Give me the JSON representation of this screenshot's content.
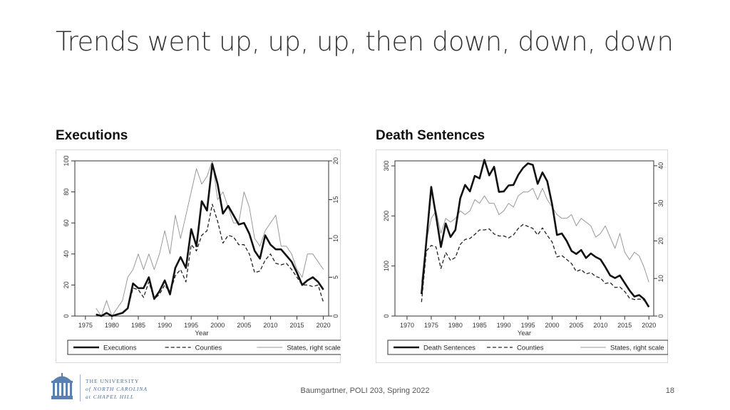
{
  "slide": {
    "title": "Trends went up, up, up, then down, down, down",
    "footer": "Baumgartner, POLI 203, Spring 2022",
    "page_number": "18"
  },
  "logo": {
    "line1": "THE UNIVERSITY",
    "line2": "of NORTH CAROLINA",
    "line3": "at CHAPEL HILL",
    "color": "#4b6d9a"
  },
  "chart_data": [
    {
      "type": "line",
      "panel_label": "Executions",
      "xlabel": "Year",
      "x_ticks": [
        1975,
        1980,
        1985,
        1990,
        1995,
        2000,
        2005,
        2010,
        2015,
        2020
      ],
      "xlim": [
        1973,
        2021
      ],
      "y_left_ticks": [
        0,
        20,
        40,
        60,
        80,
        100
      ],
      "ylim_left": [
        0,
        100
      ],
      "y_right_ticks": [
        0,
        5,
        10,
        15,
        20
      ],
      "ylim_right": [
        0,
        20
      ],
      "legend_position": "bottom",
      "series": [
        {
          "name": "Executions",
          "style": "thick-solid",
          "axis": "left",
          "x": [
            1977,
            1978,
            1979,
            1980,
            1981,
            1982,
            1983,
            1984,
            1985,
            1986,
            1987,
            1988,
            1989,
            1990,
            1991,
            1992,
            1993,
            1994,
            1995,
            1996,
            1997,
            1998,
            1999,
            2000,
            2001,
            2002,
            2003,
            2004,
            2005,
            2006,
            2007,
            2008,
            2009,
            2010,
            2011,
            2012,
            2013,
            2014,
            2015,
            2016,
            2017,
            2018,
            2019,
            2020
          ],
          "values": [
            1,
            0,
            2,
            0,
            1,
            2,
            5,
            21,
            18,
            18,
            25,
            11,
            16,
            23,
            14,
            31,
            38,
            31,
            56,
            45,
            74,
            68,
            98,
            85,
            66,
            71,
            65,
            59,
            60,
            53,
            42,
            37,
            52,
            46,
            43,
            43,
            39,
            35,
            28,
            20,
            23,
            25,
            22,
            17
          ]
        },
        {
          "name": "Counties",
          "style": "dashed",
          "axis": "left",
          "x": [
            1977,
            1978,
            1979,
            1980,
            1981,
            1982,
            1983,
            1984,
            1985,
            1986,
            1987,
            1988,
            1989,
            1990,
            1991,
            1992,
            1993,
            1994,
            1995,
            1996,
            1997,
            1998,
            1999,
            2000,
            2001,
            2002,
            2003,
            2004,
            2005,
            2006,
            2007,
            2008,
            2009,
            2010,
            2011,
            2012,
            2013,
            2014,
            2015,
            2016,
            2017,
            2018,
            2019,
            2020
          ],
          "values": [
            1,
            0,
            2,
            0,
            1,
            2,
            5,
            18,
            17,
            12,
            22,
            11,
            14,
            20,
            15,
            26,
            30,
            22,
            46,
            42,
            52,
            55,
            72,
            61,
            47,
            52,
            51,
            46,
            46,
            40,
            28,
            29,
            36,
            40,
            34,
            33,
            34,
            30,
            25,
            20,
            20,
            19,
            20,
            9
          ]
        },
        {
          "name": "States, right scale",
          "style": "thin-solid",
          "axis": "right",
          "x": [
            1977,
            1978,
            1979,
            1980,
            1981,
            1982,
            1983,
            1984,
            1985,
            1986,
            1987,
            1988,
            1989,
            1990,
            1991,
            1992,
            1993,
            1994,
            1995,
            1996,
            1997,
            1998,
            1999,
            2000,
            2001,
            2002,
            2003,
            2004,
            2005,
            2006,
            2007,
            2008,
            2009,
            2010,
            2011,
            2012,
            2013,
            2014,
            2015,
            2016,
            2017,
            2018,
            2019,
            2020
          ],
          "values": [
            1,
            0,
            2,
            0,
            1,
            2,
            5,
            6,
            8,
            6,
            8,
            6,
            8,
            11,
            8,
            13,
            10,
            13,
            16,
            19,
            17,
            18,
            20,
            15,
            16,
            14,
            12,
            12,
            16,
            14,
            10,
            9,
            11,
            12,
            13,
            9,
            9,
            8,
            6,
            5,
            8,
            8,
            7,
            6
          ]
        }
      ]
    },
    {
      "type": "line",
      "panel_label": "Death Sentences",
      "xlabel": "Year",
      "x_ticks": [
        1970,
        1975,
        1980,
        1985,
        1990,
        1995,
        2000,
        2005,
        2010,
        2015,
        2020
      ],
      "xlim": [
        1967.5,
        2021
      ],
      "y_left_ticks": [
        0,
        100,
        200,
        300
      ],
      "ylim_left": [
        0,
        310
      ],
      "y_right_ticks": [
        0,
        10,
        20,
        30,
        40
      ],
      "ylim_right": [
        0,
        41.3
      ],
      "legend_position": "bottom",
      "series": [
        {
          "name": "Death Sentences",
          "style": "thick-solid",
          "axis": "left",
          "x": [
            1973,
            1974,
            1975,
            1976,
            1977,
            1978,
            1979,
            1980,
            1981,
            1982,
            1983,
            1984,
            1985,
            1986,
            1987,
            1988,
            1989,
            1990,
            1991,
            1992,
            1993,
            1994,
            1995,
            1996,
            1997,
            1998,
            1999,
            2000,
            2001,
            2002,
            2003,
            2004,
            2005,
            2006,
            2007,
            2008,
            2009,
            2010,
            2011,
            2012,
            2013,
            2014,
            2015,
            2016,
            2017,
            2018,
            2019,
            2020
          ],
          "values": [
            44,
            150,
            258,
            200,
            138,
            185,
            158,
            172,
            235,
            262,
            249,
            280,
            275,
            312,
            281,
            298,
            248,
            249,
            261,
            262,
            282,
            296,
            305,
            302,
            264,
            287,
            269,
            223,
            162,
            165,
            150,
            130,
            124,
            132,
            116,
            125,
            118,
            113,
            98,
            81,
            76,
            81,
            66,
            51,
            39,
            42,
            34,
            18
          ]
        },
        {
          "name": "Counties",
          "style": "dashed",
          "axis": "left",
          "x": [
            1973,
            1974,
            1975,
            1976,
            1977,
            1978,
            1979,
            1980,
            1981,
            1982,
            1983,
            1984,
            1985,
            1986,
            1987,
            1988,
            1989,
            1990,
            1991,
            1992,
            1993,
            1994,
            1995,
            1996,
            1997,
            1998,
            1999,
            2000,
            2001,
            2002,
            2003,
            2004,
            2005,
            2006,
            2007,
            2008,
            2009,
            2010,
            2011,
            2012,
            2013,
            2014,
            2015,
            2016,
            2017,
            2018,
            2019,
            2020
          ],
          "values": [
            28,
            130,
            141,
            138,
            95,
            127,
            111,
            117,
            143,
            153,
            155,
            163,
            172,
            172,
            174,
            164,
            160,
            160,
            156,
            162,
            175,
            183,
            179,
            175,
            162,
            176,
            161,
            148,
            118,
            121,
            113,
            105,
            89,
            93,
            84,
            87,
            79,
            76,
            65,
            67,
            57,
            58,
            49,
            36,
            33,
            34,
            32,
            18
          ]
        },
        {
          "name": "States, right scale",
          "style": "thin-solid",
          "axis": "right",
          "x": [
            1973,
            1974,
            1975,
            1976,
            1977,
            1978,
            1979,
            1980,
            1981,
            1982,
            1983,
            1984,
            1985,
            1986,
            1987,
            1988,
            1989,
            1990,
            1991,
            1992,
            1993,
            1994,
            1995,
            1996,
            1997,
            1998,
            1999,
            2000,
            2001,
            2002,
            2003,
            2004,
            2005,
            2006,
            2007,
            2008,
            2009,
            2010,
            2011,
            2012,
            2013,
            2014,
            2015,
            2016,
            2017,
            2018,
            2019,
            2020
          ],
          "values": [
            9,
            20,
            26,
            28,
            22,
            26,
            25,
            26,
            28,
            27,
            28,
            31,
            30,
            32,
            30,
            30,
            27,
            28,
            30,
            29,
            32,
            33,
            33,
            34,
            31,
            34,
            31,
            29,
            27,
            26,
            26,
            27,
            24,
            26,
            25,
            24,
            21,
            22,
            24,
            21,
            18,
            22,
            17,
            15,
            17,
            16,
            13,
            9
          ]
        }
      ]
    }
  ]
}
